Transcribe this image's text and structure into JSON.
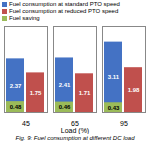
{
  "chart_data": {
    "type": "bar",
    "title": "Fig. 9: Fuel consumption at different DC load",
    "xlabel": "Load (%)",
    "categories": [
      "45",
      "65",
      "95"
    ],
    "series": [
      {
        "name": "Fuel consumption at standard PTO speed",
        "color": "#4472C4",
        "values": [
          2.37,
          2.41,
          3.11
        ]
      },
      {
        "name": "Fuel consumption at reduced PTO speed",
        "color": "#C0504D",
        "values": [
          1.75,
          1.71,
          1.98
        ]
      },
      {
        "name": "Fuel saving",
        "color": "#9BBB59",
        "values": [
          0.48,
          0.46,
          0.43
        ]
      }
    ],
    "ylim": [
      0,
      3.8
    ],
    "grid": false,
    "legend": "upper left",
    "data_labels": true,
    "tick_labels": "x"
  }
}
